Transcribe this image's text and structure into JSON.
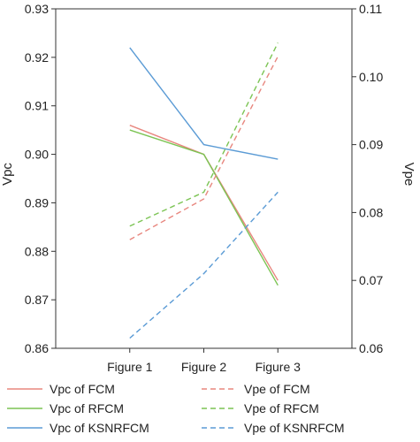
{
  "chart_data": {
    "type": "line",
    "categories": [
      "Figure 1",
      "Figure 2",
      "Figure 3"
    ],
    "left_axis": {
      "label": "Vpc",
      "range": [
        0.86,
        0.93
      ],
      "ticks": [
        "0.86",
        "0.87",
        "0.88",
        "0.89",
        "0.90",
        "0.91",
        "0.92",
        "0.93"
      ]
    },
    "right_axis": {
      "label": "Vpe",
      "range": [
        0.06,
        0.11
      ],
      "ticks": [
        "0.06",
        "0.07",
        "0.08",
        "0.09",
        "0.10",
        "0.11"
      ]
    },
    "series": [
      {
        "name": "Vpc of FCM",
        "axis": "left",
        "style": "solid",
        "color": "#e8877f",
        "values": [
          0.906,
          0.9,
          0.874
        ]
      },
      {
        "name": "Vpc of RFCM",
        "axis": "left",
        "style": "solid",
        "color": "#7cc454",
        "values": [
          0.905,
          0.9,
          0.873
        ]
      },
      {
        "name": "Vpc of KSNRFCM",
        "axis": "left",
        "style": "solid",
        "color": "#5b9bd5",
        "values": [
          0.922,
          0.902,
          0.899
        ]
      },
      {
        "name": "Vpe of FCM",
        "axis": "right",
        "style": "dashed",
        "color": "#e8877f",
        "values": [
          0.076,
          0.082,
          0.103
        ]
      },
      {
        "name": "Vpe of RFCM",
        "axis": "right",
        "style": "dashed",
        "color": "#7cc454",
        "values": [
          0.078,
          0.083,
          0.105
        ]
      },
      {
        "name": "Vpe of KSNRFCM",
        "axis": "right",
        "style": "dashed",
        "color": "#5b9bd5",
        "values": [
          0.0615,
          0.071,
          0.083
        ]
      }
    ],
    "legend_position": "bottom",
    "grid": false
  }
}
